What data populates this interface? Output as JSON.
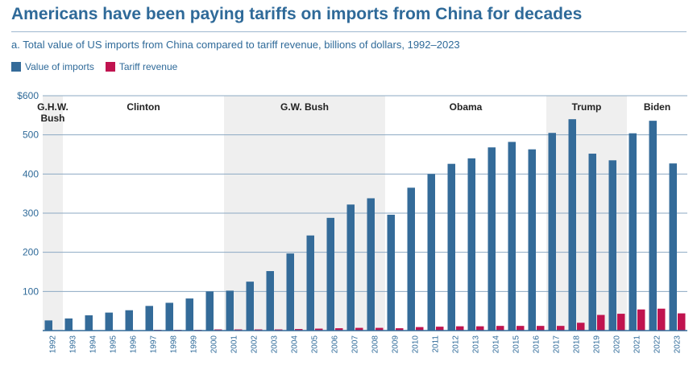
{
  "header": {
    "title": "Americans have been paying tariffs on imports from China for decades",
    "subtitle": "a. Total value of US imports from China compared to tariff revenue, billions of dollars, 1992–2023"
  },
  "legend": {
    "items": [
      {
        "label": "Value of imports",
        "color": "#346b99"
      },
      {
        "label": "Tariff revenue",
        "color": "#c0134f"
      }
    ]
  },
  "chart_data": {
    "type": "bar",
    "categories": [
      "1992",
      "1993",
      "1994",
      "1995",
      "1996",
      "1997",
      "1998",
      "1999",
      "2000",
      "2001",
      "2002",
      "2003",
      "2004",
      "2005",
      "2006",
      "2007",
      "2008",
      "2009",
      "2010",
      "2011",
      "2012",
      "2013",
      "2014",
      "2015",
      "2016",
      "2017",
      "2018",
      "2019",
      "2020",
      "2021",
      "2022",
      "2023"
    ],
    "series": [
      {
        "name": "Value of imports",
        "color": "#346b99",
        "values": [
          26,
          31,
          39,
          46,
          52,
          63,
          71,
          82,
          100,
          102,
          125,
          152,
          197,
          243,
          288,
          322,
          338,
          296,
          365,
          400,
          426,
          440,
          468,
          482,
          463,
          505,
          540,
          452,
          435,
          504,
          536,
          427
        ]
      },
      {
        "name": "Tariff revenue",
        "color": "#c0134f",
        "values": [
          1,
          1,
          1,
          1,
          1,
          2,
          2,
          2,
          3,
          3,
          3,
          3,
          4,
          5,
          6,
          7,
          7,
          6,
          9,
          10,
          11,
          11,
          12,
          12,
          12,
          12,
          20,
          40,
          43,
          54,
          56,
          44
        ]
      }
    ],
    "y_ticks": [
      "$600",
      "500",
      "400",
      "300",
      "200",
      "100"
    ],
    "y_tick_values": [
      600,
      500,
      400,
      300,
      200,
      100
    ],
    "ylim": [
      0,
      600
    ],
    "grid": true,
    "legend_position": "top-left",
    "eras": [
      {
        "label": "G.H.W. Bush",
        "start": "1992",
        "end": "1992",
        "shaded": true
      },
      {
        "label": "Clinton",
        "start": "1993",
        "end": "2000",
        "shaded": false
      },
      {
        "label": "G.W. Bush",
        "start": "2001",
        "end": "2008",
        "shaded": true
      },
      {
        "label": "Obama",
        "start": "2009",
        "end": "2016",
        "shaded": false
      },
      {
        "label": "Trump",
        "start": "2017",
        "end": "2020",
        "shaded": true
      },
      {
        "label": "Biden",
        "start": "2021",
        "end": "2023",
        "shaded": false
      }
    ],
    "shade_color": "#efefef",
    "grid_color": "#8ba8c3"
  }
}
